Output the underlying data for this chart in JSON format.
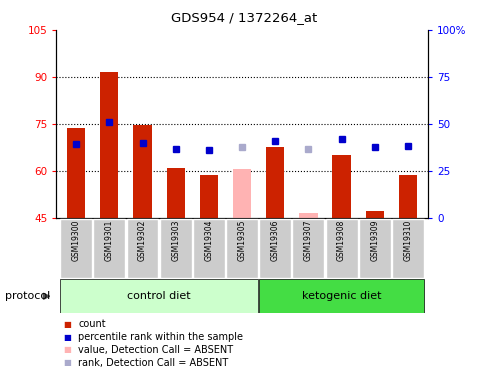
{
  "title": "GDS954 / 1372264_at",
  "samples": [
    "GSM19300",
    "GSM19301",
    "GSM19302",
    "GSM19303",
    "GSM19304",
    "GSM19305",
    "GSM19306",
    "GSM19307",
    "GSM19308",
    "GSM19309",
    "GSM19310"
  ],
  "bar_values": [
    73.5,
    91.5,
    74.5,
    61.0,
    58.5,
    null,
    67.5,
    null,
    65.0,
    47.0,
    58.5
  ],
  "bar_absent_values": [
    null,
    null,
    null,
    null,
    null,
    60.5,
    null,
    46.5,
    null,
    null,
    null
  ],
  "rank_values": [
    68.5,
    75.5,
    69.0,
    67.0,
    66.5,
    null,
    69.5,
    null,
    70.0,
    67.5,
    68.0
  ],
  "rank_absent_values": [
    null,
    null,
    null,
    null,
    null,
    67.5,
    null,
    67.0,
    null,
    null,
    null
  ],
  "bar_color": "#cc2200",
  "bar_absent_color": "#ffb3b3",
  "rank_color": "#0000cc",
  "rank_absent_color": "#aaaacc",
  "ylim": [
    45,
    105
  ],
  "y2lim": [
    0,
    100
  ],
  "yticks": [
    45,
    60,
    75,
    90,
    105
  ],
  "ytick_labels": [
    "45",
    "60",
    "75",
    "90",
    "105"
  ],
  "y2ticks": [
    0,
    25,
    50,
    75,
    100
  ],
  "y2tick_labels": [
    "0",
    "25",
    "50",
    "75",
    "100%"
  ],
  "dotted_lines": [
    60,
    75,
    90
  ],
  "groups": [
    {
      "label": "control diet",
      "start": 0,
      "end": 5,
      "color": "#ccffcc"
    },
    {
      "label": "ketogenic diet",
      "start": 6,
      "end": 10,
      "color": "#44dd44"
    }
  ],
  "group_label_prefix": "protocol",
  "sample_bg": "#cccccc",
  "plot_bg": "#ffffff",
  "legend_items": [
    {
      "label": "count",
      "color": "#cc2200"
    },
    {
      "label": "percentile rank within the sample",
      "color": "#0000cc"
    },
    {
      "label": "value, Detection Call = ABSENT",
      "color": "#ffb3b3"
    },
    {
      "label": "rank, Detection Call = ABSENT",
      "color": "#aaaacc"
    }
  ],
  "fig_width": 4.89,
  "fig_height": 3.75
}
